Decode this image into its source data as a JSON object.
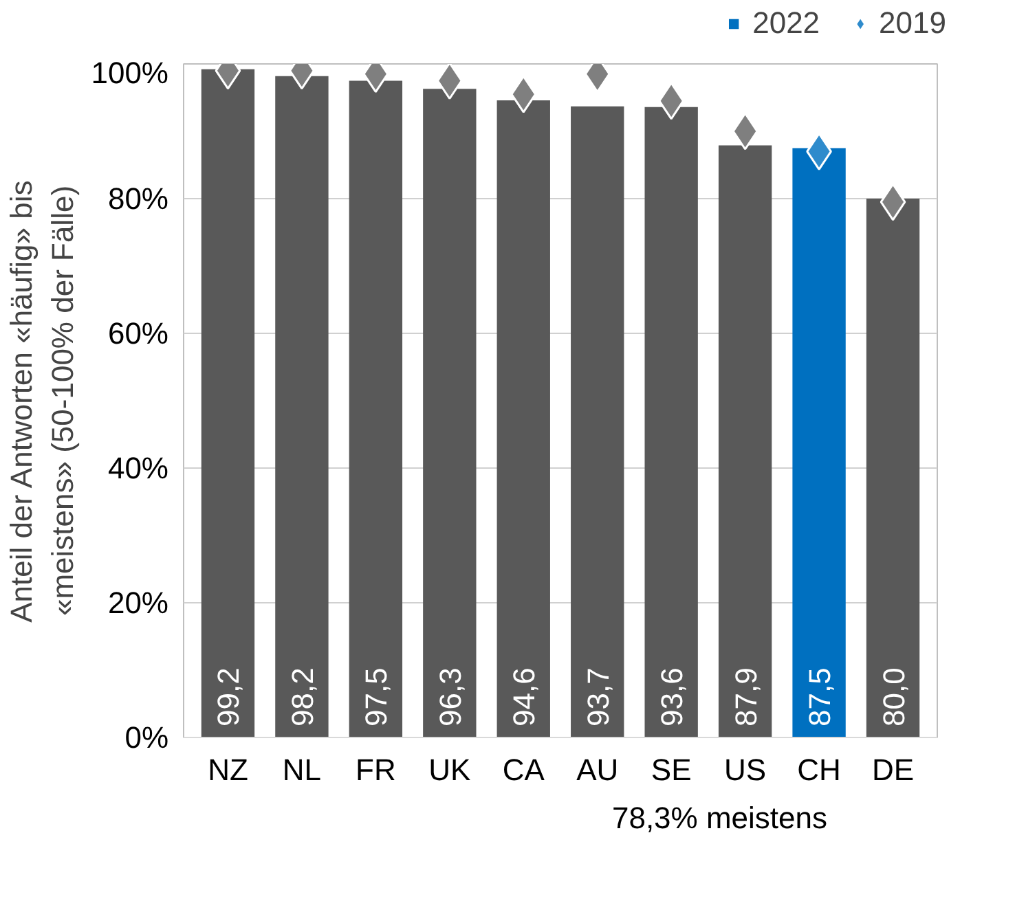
{
  "chart_data": {
    "type": "bar",
    "ylabel": "Anteil der Antworten «häufig» bis\n«meistens» (50-100% der Fälle)",
    "categories": [
      "NZ",
      "NL",
      "FR",
      "UK",
      "CA",
      "AU",
      "SE",
      "US",
      "CH",
      "DE"
    ],
    "series": [
      {
        "name": "2022",
        "color": "#0070c0",
        "colors": [
          "#595959",
          "#595959",
          "#595959",
          "#595959",
          "#595959",
          "#595959",
          "#595959",
          "#595959",
          "#0070c0",
          "#595959"
        ],
        "values": [
          99.2,
          98.2,
          97.5,
          96.3,
          94.6,
          93.7,
          93.6,
          87.9,
          87.5,
          80.0
        ],
        "value_labels": [
          "99,2",
          "98,2",
          "97,5",
          "96,3",
          "94,6",
          "93,7",
          "93,6",
          "87,9",
          "87,5",
          "80,0"
        ]
      },
      {
        "name": "2019",
        "type": "scatter",
        "marker": "diamond",
        "color": "#2e8bcc",
        "colors": [
          "#7f7f7f",
          "#7f7f7f",
          "#7f7f7f",
          "#7f7f7f",
          "#7f7f7f",
          "#7f7f7f",
          "#7f7f7f",
          "#7f7f7f",
          "#2e8bcc",
          "#7f7f7f"
        ],
        "values": [
          99,
          99,
          98.5,
          97.5,
          95.5,
          98.5,
          94.5,
          90,
          87,
          79.5
        ]
      }
    ],
    "ylim": [
      0,
      100
    ],
    "yticks": [
      {
        "value": 0,
        "label": "0%"
      },
      {
        "value": 20,
        "label": "20%"
      },
      {
        "value": 40,
        "label": "40%"
      },
      {
        "value": 60,
        "label": "60%"
      },
      {
        "value": 80,
        "label": "80%"
      },
      {
        "value": 100,
        "label": "100%"
      }
    ],
    "legend": "top right",
    "grid": "y",
    "annotations": [
      "78,3% meistens"
    ]
  }
}
